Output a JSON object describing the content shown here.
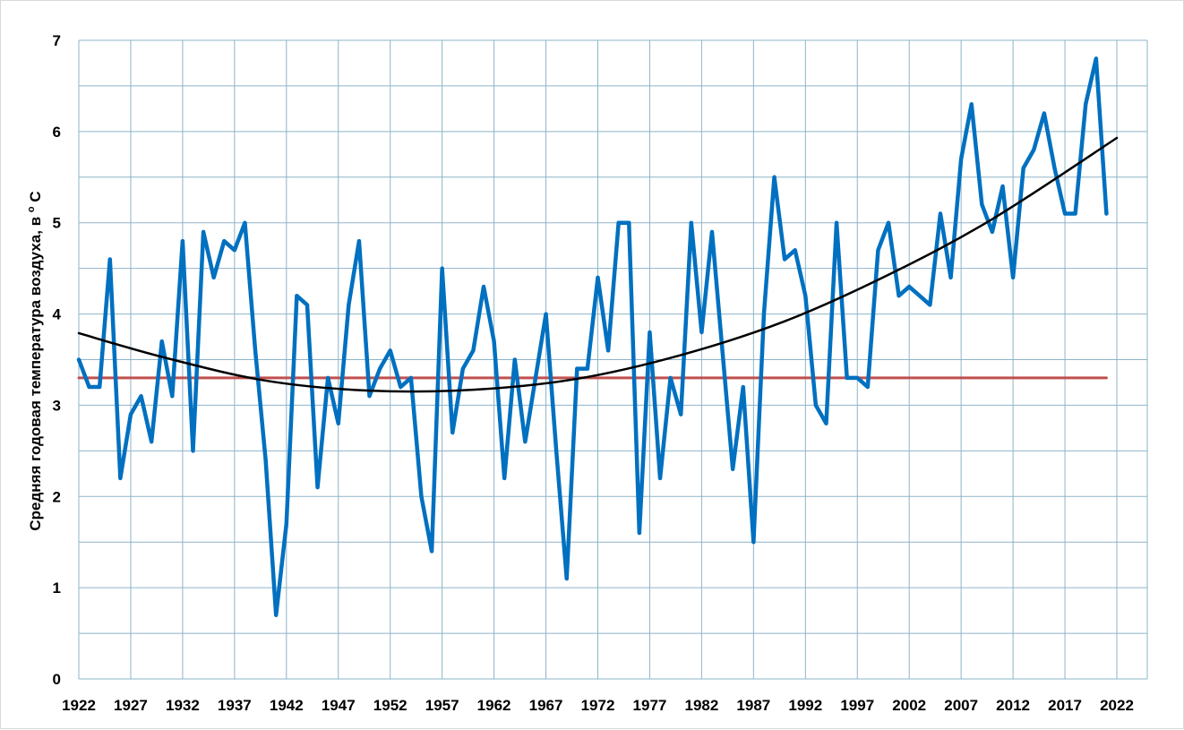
{
  "chart_data": {
    "type": "line",
    "ylabel_text": "Средняя годовая температура воздуха, в",
    "ylabel_unit_deg": "о",
    "ylabel_unit_c": "С",
    "ylim": [
      0,
      7
    ],
    "yticks": [
      0,
      1,
      2,
      3,
      4,
      5,
      6,
      7
    ],
    "xlim": [
      1922,
      2022
    ],
    "xticks": [
      1922,
      1927,
      1932,
      1937,
      1942,
      1947,
      1952,
      1957,
      1962,
      1967,
      1972,
      1977,
      1982,
      1987,
      1992,
      1997,
      2002,
      2007,
      2012,
      2017,
      2022
    ],
    "grid": true,
    "colors": {
      "series": "#0070c0",
      "mean": "#c0504d",
      "trend": "#000000",
      "grid": "#8eb4c8"
    },
    "series": [
      {
        "role": "annual_mean",
        "x_start": 1922,
        "values": [
          3.5,
          3.2,
          3.2,
          4.6,
          2.2,
          2.9,
          3.1,
          2.6,
          3.7,
          3.1,
          4.8,
          2.5,
          4.9,
          4.4,
          4.8,
          4.7,
          5.0,
          3.6,
          2.4,
          0.7,
          1.7,
          4.2,
          4.1,
          2.1,
          3.3,
          2.8,
          4.1,
          4.8,
          3.1,
          3.4,
          3.6,
          3.2,
          3.3,
          2.0,
          1.4,
          4.5,
          2.7,
          3.4,
          3.6,
          4.3,
          3.7,
          2.2,
          3.5,
          2.6,
          3.3,
          4.0,
          2.5,
          1.1,
          3.4,
          3.4,
          4.4,
          3.6,
          5.0,
          5.0,
          1.6,
          3.8,
          2.2,
          3.3,
          2.9,
          5.0,
          3.8,
          4.9,
          3.6,
          2.3,
          3.2,
          1.5,
          4.0,
          5.5,
          4.6,
          4.7,
          4.2,
          3.0,
          2.8,
          5.0,
          3.3,
          3.3,
          3.2,
          4.7,
          5.0,
          4.2,
          4.3,
          4.2,
          4.1,
          5.1,
          4.4,
          5.7,
          6.3,
          5.2,
          4.9,
          5.4,
          4.4,
          5.6,
          5.8,
          6.2,
          5.6,
          5.1,
          5.1,
          6.3,
          6.8,
          5.1
        ]
      },
      {
        "role": "long_term_mean",
        "x": [
          1922,
          2021
        ],
        "y": [
          3.3,
          3.3
        ]
      },
      {
        "role": "polynomial_trend",
        "x": [
          1922,
          1930,
          1940,
          1950,
          1960,
          1970,
          1980,
          1990,
          2000,
          2010,
          2022
        ],
        "y": [
          3.79,
          3.53,
          3.27,
          3.16,
          3.17,
          3.29,
          3.55,
          3.92,
          4.43,
          5.04,
          5.93
        ]
      }
    ]
  }
}
